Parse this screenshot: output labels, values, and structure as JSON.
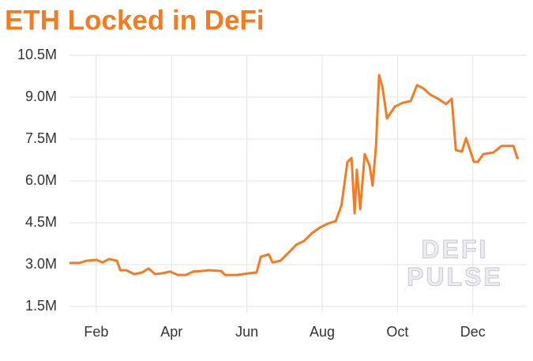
{
  "chart_data": {
    "type": "line",
    "title": "ETH Locked in DeFi",
    "annotations": [
      "DEFI",
      "PULSE"
    ],
    "color": "#f47b20",
    "grid": true,
    "x": [
      0.29,
      0.55,
      0.75,
      1.01,
      1.17,
      1.34,
      1.55,
      1.64,
      1.8,
      2.01,
      2.22,
      2.39,
      2.56,
      2.75,
      2.96,
      3.17,
      3.38,
      3.58,
      3.79,
      4.0,
      4.32,
      4.42,
      4.74,
      5.05,
      5.26,
      5.37,
      5.58,
      5.68,
      5.89,
      6.1,
      6.31,
      6.52,
      6.73,
      6.94,
      7.15,
      7.36,
      7.51,
      7.67,
      7.78,
      7.86,
      7.92,
      8.01,
      8.13,
      8.26,
      8.34,
      8.43,
      8.51,
      8.6,
      8.72,
      8.93,
      9.14,
      9.35,
      9.52,
      9.69,
      9.87,
      10.08,
      10.29,
      10.44,
      10.55,
      10.71,
      10.82,
      10.96,
      11.03,
      11.13,
      11.28,
      11.55,
      11.76,
      11.97,
      12.08,
      12.18,
      12.22
    ],
    "values": [
      3060000,
      3060000,
      3140000,
      3170000,
      3080000,
      3200000,
      3140000,
      2800000,
      2800000,
      2660000,
      2720000,
      2860000,
      2660000,
      2690000,
      2750000,
      2630000,
      2630000,
      2750000,
      2770000,
      2800000,
      2770000,
      2630000,
      2630000,
      2690000,
      2720000,
      3280000,
      3370000,
      3080000,
      3140000,
      3420000,
      3710000,
      3850000,
      4130000,
      4330000,
      4470000,
      4560000,
      5120000,
      6680000,
      6820000,
      4840000,
      6400000,
      4980000,
      6960000,
      6540000,
      5830000,
      7250000,
      9790000,
      9370000,
      8240000,
      8660000,
      8800000,
      8860000,
      9430000,
      9310000,
      9090000,
      8940000,
      8750000,
      8940000,
      7100000,
      7050000,
      7530000,
      6960000,
      6680000,
      6680000,
      6960000,
      7020000,
      7250000,
      7250000,
      7250000,
      6820000,
      6820000
    ],
    "xlim": [
      0.29,
      12.22
    ],
    "xticks": [
      {
        "value": 1,
        "label": "Feb"
      },
      {
        "value": 3,
        "label": "Apr"
      },
      {
        "value": 5,
        "label": "Jun"
      },
      {
        "value": 7,
        "label": "Aug"
      },
      {
        "value": 9,
        "label": "Oct"
      },
      {
        "value": 11,
        "label": "Dec"
      }
    ],
    "ylim": [
      1500000,
      10500000
    ],
    "yticks": [
      {
        "value": 1500000,
        "label": "1.5M"
      },
      {
        "value": 3000000,
        "label": "3.0M"
      },
      {
        "value": 4500000,
        "label": "4.5M"
      },
      {
        "value": 6000000,
        "label": "6.0M"
      },
      {
        "value": 7500000,
        "label": "7.5M"
      },
      {
        "value": 9000000,
        "label": "9.0M"
      },
      {
        "value": 10500000,
        "label": "10.5M"
      }
    ]
  }
}
